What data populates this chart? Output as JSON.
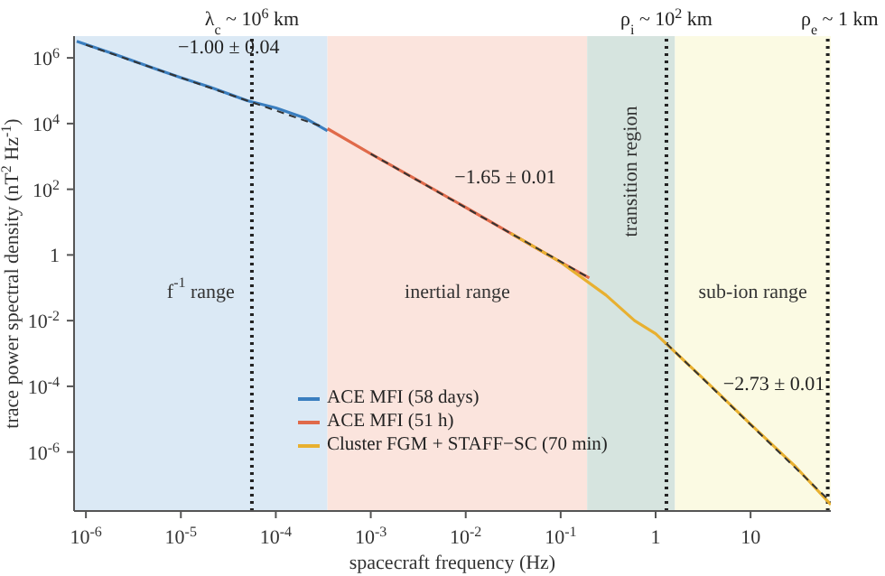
{
  "chart_data": {
    "type": "line",
    "xlabel": "spacecraft frequency (Hz)",
    "ylabel": "trace power spectral density (nT$^{2}$ Hz$^{-1}$)",
    "log": "xy",
    "xlim": [
      7.5e-07,
      70
    ],
    "ylim": [
      1.6e-08,
      4600000.0
    ],
    "xticks": [
      {
        "value": 1e-06,
        "label": "10$^{-6}$"
      },
      {
        "value": 1e-05,
        "label": "10$^{-5}$"
      },
      {
        "value": 0.0001,
        "label": "10$^{-4}$"
      },
      {
        "value": 0.001,
        "label": "10$^{-3}$"
      },
      {
        "value": 0.01,
        "label": "10$^{-2}$"
      },
      {
        "value": 0.1,
        "label": "10$^{-1}$"
      },
      1,
      10
    ],
    "yticks": [
      {
        "value": 1e-06,
        "label": "10$^{-6}$"
      },
      {
        "value": 0.0001,
        "label": "10$^{-4}$"
      },
      {
        "value": 0.01,
        "label": "10$^{-2}$"
      },
      1,
      {
        "value": 100,
        "label": "10$^{2}$"
      },
      {
        "value": 10000.0,
        "label": "10$^{4}$"
      },
      {
        "value": 1000000.0,
        "label": "10$^{6}$"
      }
    ],
    "grid": false,
    "legend": "bottom",
    "series": [
      {
        "name": "ACE MFI (58 days)",
        "color": "#3a7ebf",
        "x": [
          8e-07,
          2e-06,
          5e-06,
          1e-05,
          2e-05,
          5e-05,
          0.0001,
          0.0002,
          0.00035
        ],
        "values": [
          3200000.0,
          1300000.0,
          500000.0,
          250000.0,
          130000.0,
          50000.0,
          30000.0,
          15000.0,
          6000.0
        ]
      },
      {
        "name": "ACE MFI (51 h)",
        "color": "#e06a4a",
        "x": [
          0.00035,
          0.001,
          0.003,
          0.01,
          0.03,
          0.1,
          0.2
        ],
        "values": [
          7000.0,
          1200.0,
          200,
          28,
          4.5,
          0.6,
          0.2
        ]
      },
      {
        "name": "Cluster FGM + STAFF−SC (70 min)",
        "color": "#e8b030",
        "x": [
          0.03,
          0.1,
          0.3,
          0.6,
          1,
          3,
          10,
          30,
          70
        ],
        "values": [
          4.5,
          0.6,
          0.06,
          0.01,
          0.004,
          0.0002,
          7e-06,
          3.5e-07,
          2.5e-08
        ]
      },
      {
        "color": "#333333",
        "line_style": "dashed",
        "x": [
          1e-06,
          0.0003
        ],
        "values": [
          2500000.0,
          8300.0
        ]
      },
      {
        "color": "#333333",
        "line_style": "dashed",
        "x": [
          0.001,
          0.2
        ],
        "values": [
          1200.0,
          0.2
        ]
      },
      {
        "color": "#333333",
        "line_style": "dashed",
        "x": [
          1.3,
          70
        ],
        "values": [
          0.002,
          3e-08
        ]
      }
    ],
    "bands": [
      {
        "axis": "x",
        "from": 7.5e-07,
        "to": 0.00035,
        "label": "f$^{-1}$ range",
        "color": "#dbe9f5"
      },
      {
        "axis": "x",
        "from": 0.00035,
        "to": 0.19,
        "label": "inertial range",
        "color": "#fbe4dd"
      },
      {
        "axis": "x",
        "from": 0.19,
        "to": 1.6,
        "label": "transition region",
        "color": "#d6e4df"
      },
      {
        "axis": "x",
        "from": 1.6,
        "to": 70,
        "label": "sub-ion range",
        "color": "#fbfae3"
      }
    ],
    "ref_lines": [
      {
        "axis": "x",
        "value": 5.6e-05,
        "label": "λ$_{c}$ ~ 10$^{6}$ km",
        "line_style": "dotted",
        "color": "#222222"
      },
      {
        "axis": "x",
        "value": 1.3,
        "label": "ρ$_{i}$ ~ 10$^{2}$ km",
        "line_style": "dotted",
        "color": "#222222"
      },
      {
        "axis": "x",
        "value": 65,
        "label": "ρ$_{e}$ ~ 1 km",
        "line_style": "dotted",
        "color": "#222222"
      }
    ],
    "annotations": [
      "−1.00 ± 0.04",
      "−1.65 ± 0.01",
      "−2.73 ± 0.01"
    ]
  }
}
